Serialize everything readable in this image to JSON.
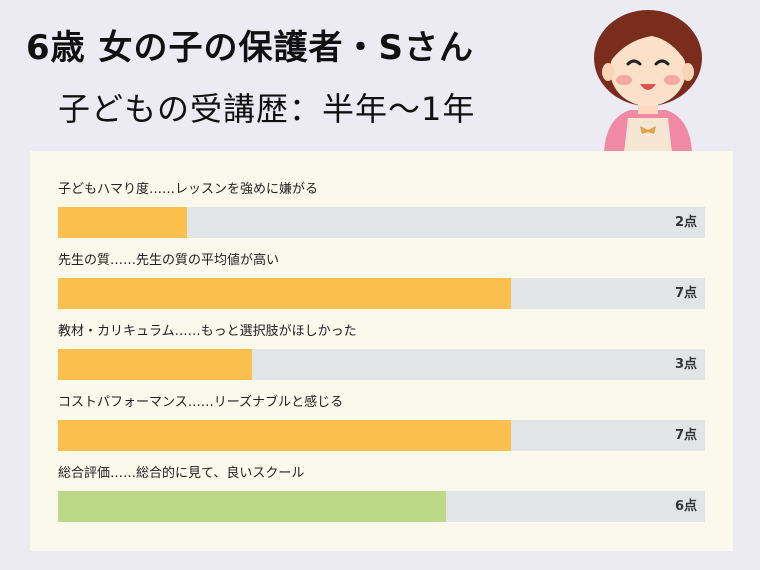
{
  "header": {
    "title": "6歳 女の子の保護者・Sさん",
    "subtitle": "子どもの受講歴：半年〜1年"
  },
  "avatar": {
    "icon": "mother-illustration-icon"
  },
  "colors": {
    "background": "#ecebf4",
    "card": "#fbf8ec",
    "track": "#e1e5e8",
    "bar_orange": "#fbbf4e",
    "bar_green": "#bcd889"
  },
  "ratings": [
    {
      "label": "子どもハマり度……レッスンを強めに嫌がる",
      "score": 2,
      "score_label": "2点",
      "color": "#fbbf4e"
    },
    {
      "label": "先生の質……先生の質の平均値が高い",
      "score": 7,
      "score_label": "7点",
      "color": "#fbbf4e"
    },
    {
      "label": "教材・カリキュラム……もっと選択肢がほしかった",
      "score": 3,
      "score_label": "3点",
      "color": "#fbbf4e"
    },
    {
      "label": "コストパフォーマンス……リーズナブルと感じる",
      "score": 7,
      "score_label": "7点",
      "color": "#fbbf4e"
    },
    {
      "label": "総合評価……総合的に見て、良いスクール",
      "score": 6,
      "score_label": "6点",
      "color": "#bcd889"
    }
  ],
  "scale_max": 10
}
